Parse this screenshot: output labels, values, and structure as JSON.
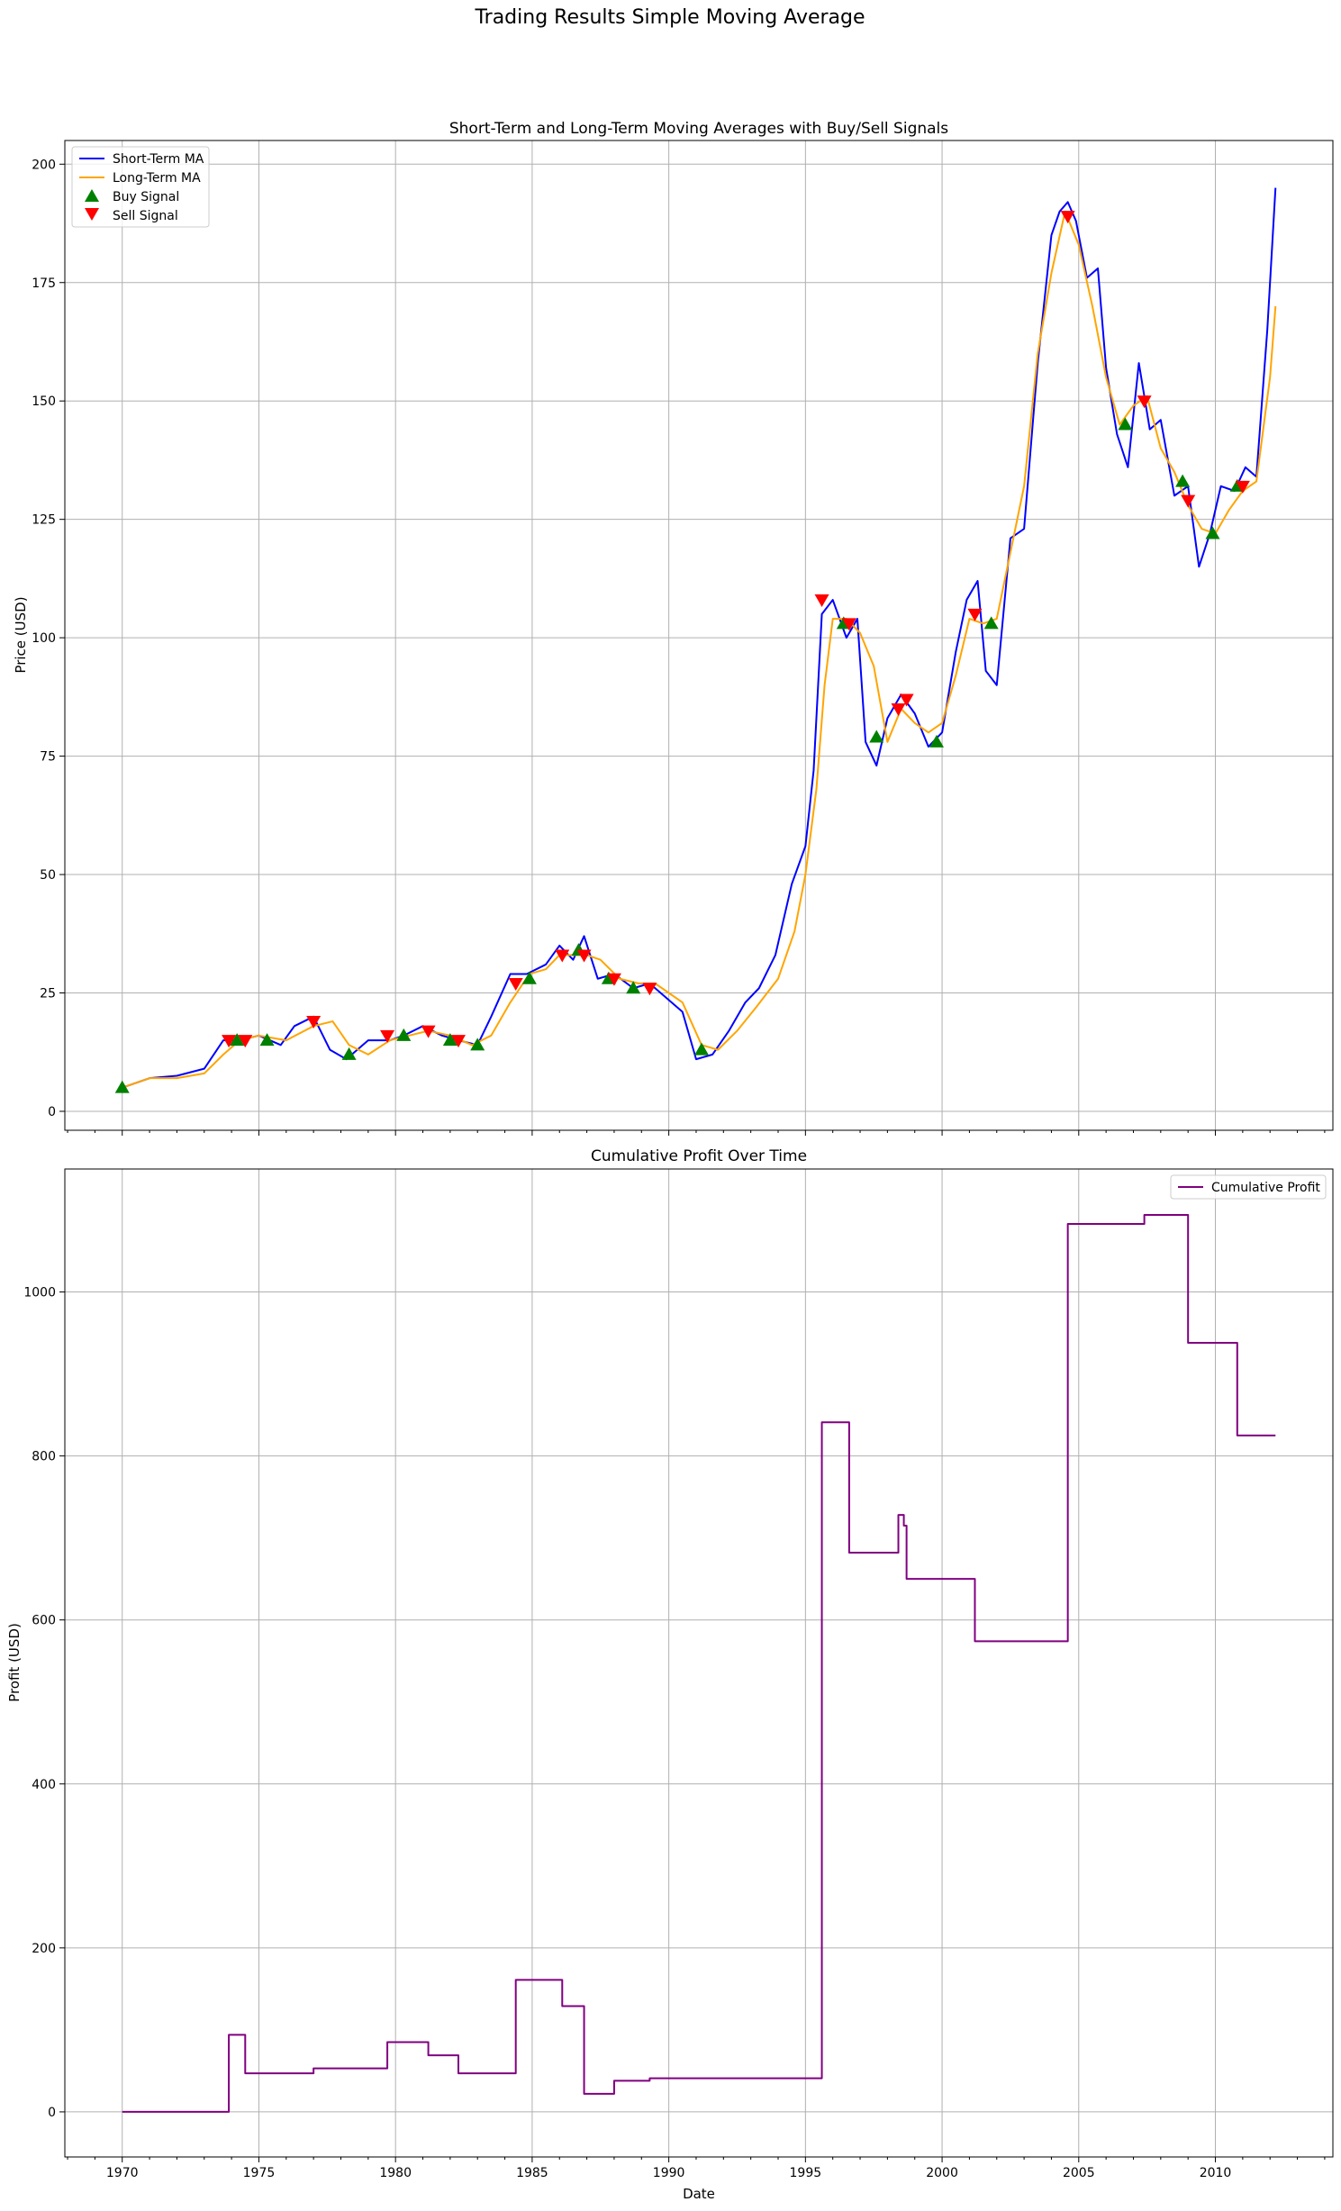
{
  "figure": {
    "suptitle": "Trading Results Simple Moving Average"
  },
  "colors": {
    "short_ma": "#0000ff",
    "long_ma": "#ffa500",
    "buy": "#008000",
    "sell": "#ff0000",
    "profit": "#800080",
    "grid": "#b0b0b0"
  },
  "chart_data": [
    {
      "type": "line",
      "title": "Short-Term and Long-Term Moving Averages with Buy/Sell Signals",
      "xlabel": "",
      "ylabel": "Price (USD)",
      "xlim": [
        1967.9,
        2014.3
      ],
      "ylim": [
        -4,
        205
      ],
      "xticks": [
        1970,
        1975,
        1980,
        1985,
        1990,
        1995,
        2000,
        2005,
        2010
      ],
      "yticks": [
        0,
        25,
        50,
        75,
        100,
        125,
        150,
        175,
        200
      ],
      "grid": true,
      "legend_position": "top-left",
      "series": [
        {
          "name": "Short-Term MA",
          "color": "#0000ff",
          "x": [
            1970.0,
            1971.0,
            1972.0,
            1973.0,
            1973.7,
            1974.3,
            1975.0,
            1975.8,
            1976.3,
            1977.0,
            1977.6,
            1978.2,
            1979.0,
            1979.8,
            1980.3,
            1981.0,
            1981.7,
            1982.3,
            1983.0,
            1983.5,
            1984.2,
            1984.8,
            1985.5,
            1986.0,
            1986.5,
            1986.9,
            1987.4,
            1988.0,
            1988.7,
            1989.3,
            1989.9,
            1990.5,
            1991.0,
            1991.6,
            1992.2,
            1992.8,
            1993.3,
            1993.9,
            1994.5,
            1995.0,
            1995.3,
            1995.6,
            1996.0,
            1996.5,
            1996.9,
            1997.2,
            1997.6,
            1998.0,
            1998.5,
            1999.0,
            1999.5,
            2000.0,
            2000.5,
            2000.9,
            2001.3,
            2001.6,
            2002.0,
            2002.5,
            2003.0,
            2003.5,
            2004.0,
            2004.3,
            2004.6,
            2004.9,
            2005.3,
            2005.7,
            2006.0,
            2006.4,
            2006.8,
            2007.2,
            2007.6,
            2008.0,
            2008.5,
            2009.0,
            2009.4,
            2009.8,
            2010.2,
            2010.7,
            2011.1,
            2011.5,
            2011.9,
            2012.2
          ],
          "values": [
            5,
            7,
            7.5,
            9,
            15,
            15,
            16,
            14,
            18,
            20,
            13,
            11,
            15,
            15,
            16,
            18,
            16,
            15,
            14,
            20,
            29,
            29,
            31,
            35,
            32,
            37,
            28,
            29,
            26,
            27,
            24,
            21,
            11,
            12,
            17,
            23,
            26,
            33,
            48,
            56,
            72,
            105,
            108,
            100,
            104,
            78,
            73,
            83,
            88,
            84,
            77,
            80,
            97,
            108,
            112,
            93,
            90,
            121,
            123,
            158,
            185,
            190,
            192,
            188,
            176,
            178,
            157,
            143,
            136,
            158,
            144,
            146,
            130,
            132,
            115,
            122,
            132,
            131,
            136,
            134,
            165,
            195
          ]
        },
        {
          "name": "Long-Term MA",
          "color": "#ffa500",
          "x": [
            1970.0,
            1971.0,
            1972.0,
            1973.0,
            1973.7,
            1974.3,
            1975.0,
            1976.0,
            1977.0,
            1977.7,
            1978.3,
            1979.0,
            1979.8,
            1980.5,
            1981.2,
            1982.0,
            1982.8,
            1983.5,
            1984.2,
            1984.9,
            1985.5,
            1986.0,
            1986.5,
            1987.0,
            1987.5,
            1988.2,
            1988.9,
            1989.5,
            1990.0,
            1990.5,
            1991.2,
            1991.8,
            1992.5,
            1993.2,
            1994.0,
            1994.6,
            1995.0,
            1995.4,
            1995.7,
            1996.0,
            1996.5,
            1997.0,
            1997.5,
            1998.0,
            1998.5,
            1999.0,
            1999.5,
            2000.0,
            2000.5,
            2001.0,
            2001.5,
            2002.0,
            2002.5,
            2003.0,
            2003.5,
            2004.0,
            2004.5,
            2005.0,
            2005.5,
            2006.0,
            2006.5,
            2007.0,
            2007.5,
            2008.0,
            2008.5,
            2009.0,
            2009.5,
            2010.0,
            2010.5,
            2011.0,
            2011.5,
            2012.0,
            2012.2
          ],
          "values": [
            5,
            7,
            7,
            8,
            12,
            15,
            16,
            15,
            18,
            19,
            14,
            12,
            15,
            16,
            17,
            16,
            14,
            16,
            23,
            29,
            30,
            33,
            33,
            33,
            32,
            28,
            27,
            27,
            25,
            23,
            14,
            13,
            17,
            22,
            28,
            38,
            50,
            68,
            90,
            104,
            104,
            101,
            94,
            78,
            85,
            82,
            80,
            82,
            92,
            104,
            103,
            104,
            118,
            132,
            160,
            177,
            190,
            183,
            170,
            155,
            145,
            149,
            151,
            140,
            135,
            128,
            123,
            122,
            127,
            131,
            133,
            155,
            170
          ]
        }
      ],
      "buy_signals": {
        "name": "Buy Signal",
        "color": "#008000",
        "x": [
          1970.0,
          1974.2,
          1975.3,
          1978.3,
          1980.3,
          1982.0,
          1983.0,
          1984.9,
          1986.7,
          1987.8,
          1988.7,
          1991.2,
          1996.4,
          1997.6,
          1999.8,
          2001.8,
          2006.7,
          2008.8,
          2009.9,
          2010.8
        ],
        "values": [
          5,
          15,
          15,
          12,
          16,
          15,
          14,
          28,
          34,
          28,
          26,
          13,
          103,
          79,
          78,
          103,
          145,
          133,
          122,
          132
        ]
      },
      "sell_signals": {
        "name": "Sell Signal",
        "color": "#ff0000",
        "x": [
          1973.9,
          1974.5,
          1977.0,
          1979.7,
          1981.2,
          1982.3,
          1984.4,
          1986.1,
          1986.9,
          1988.0,
          1989.3,
          1995.6,
          1996.6,
          1998.4,
          1998.7,
          2001.2,
          2004.6,
          2007.4,
          2009.0,
          2011.0
        ],
        "values": [
          15,
          15,
          19,
          16,
          17,
          15,
          27,
          33,
          33,
          28,
          26,
          108,
          103,
          85,
          87,
          105,
          189,
          150,
          129,
          132
        ]
      }
    },
    {
      "type": "line",
      "title": "Cumulative Profit Over Time",
      "xlabel": "Date",
      "ylabel": "Profit (USD)",
      "xlim": [
        1967.9,
        2014.3
      ],
      "ylim": [
        -55,
        1150
      ],
      "xticks": [
        1970,
        1975,
        1980,
        1985,
        1990,
        1995,
        2000,
        2005,
        2010
      ],
      "yticks": [
        0,
        200,
        400,
        600,
        800,
        1000
      ],
      "grid": true,
      "legend_position": "top-right",
      "series": [
        {
          "name": "Cumulative Profit",
          "color": "#800080",
          "step": "post",
          "x": [
            1970.0,
            1973.9,
            1974.5,
            1977.0,
            1979.7,
            1981.2,
            1982.3,
            1984.4,
            1986.1,
            1986.9,
            1988.0,
            1989.3,
            1995.6,
            1996.6,
            1998.4,
            1998.6,
            1998.7,
            2001.2,
            2004.6,
            2007.4,
            2009.0,
            2010.8,
            2012.2
          ],
          "values": [
            0,
            94,
            47,
            53,
            85,
            69,
            47,
            161,
            129,
            22,
            38,
            41,
            841,
            682,
            728,
            715,
            650,
            574,
            1083,
            1094,
            938,
            825,
            825
          ]
        }
      ]
    }
  ]
}
